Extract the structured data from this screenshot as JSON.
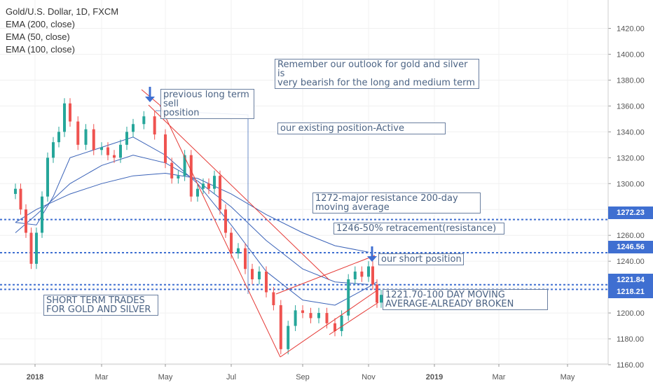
{
  "chart_data": {
    "type": "candlestick",
    "symbol_title": "Gold/U.S. Dollar, 1D, FXCM",
    "indicators": [
      "EMA (200, close)",
      "EMA (50, close)",
      "EMA (100, close)"
    ],
    "x_ticks": [
      "2018",
      "Mar",
      "May",
      "Jul",
      "Sep",
      "Nov",
      "2019",
      "Mar",
      "May"
    ],
    "y_ticks": [
      1160,
      1180,
      1200,
      1220,
      1240,
      1260,
      1280,
      1300,
      1320,
      1340,
      1360,
      1380,
      1400,
      1420
    ],
    "ylim": [
      1156,
      1431
    ],
    "price_series": [
      [
        "Dec 2017",
        1296
      ],
      [
        "Dec 2017",
        1280
      ],
      [
        "Dec 2017",
        1262
      ],
      [
        "Dec 2017",
        1238
      ],
      [
        "Jan 2018",
        1262
      ],
      [
        "Jan 2018",
        1290
      ],
      [
        "Jan 2018",
        1320
      ],
      [
        "Jan 2018",
        1332
      ],
      [
        "Jan 2018",
        1340
      ],
      [
        "Jan 2018",
        1362
      ],
      [
        "Feb 2018",
        1348
      ],
      [
        "Feb 2018",
        1330
      ],
      [
        "Feb 2018",
        1342
      ],
      [
        "Feb 2018",
        1326
      ],
      [
        "Mar 2018",
        1328
      ],
      [
        "Mar 2018",
        1322
      ],
      [
        "Mar 2018",
        1320
      ],
      [
        "Mar 2018",
        1330
      ],
      [
        "Mar 2018",
        1340
      ],
      [
        "Apr 2018",
        1346
      ],
      [
        "Apr 2018",
        1352
      ],
      [
        "Apr 2018",
        1338
      ],
      [
        "May 2018",
        1316
      ],
      [
        "May 2018",
        1304
      ],
      [
        "May 2018",
        1306
      ],
      [
        "May 2018",
        1322
      ],
      [
        "May 2018",
        1290
      ],
      [
        "Jun 2018",
        1296
      ],
      [
        "Jun 2018",
        1300
      ],
      [
        "Jun 2018",
        1296
      ],
      [
        "Jun 2018",
        1306
      ],
      [
        "Jun 2018",
        1280
      ],
      [
        "Jun 2018",
        1262
      ],
      [
        "Jul 2018",
        1246
      ],
      [
        "Jul 2018",
        1250
      ],
      [
        "Jul 2018",
        1234
      ],
      [
        "Jul 2018",
        1226
      ],
      [
        "Jul 2018",
        1232
      ],
      [
        "Aug 2018",
        1216
      ],
      [
        "Aug 2018",
        1206
      ],
      [
        "Aug 2018",
        1172
      ],
      [
        "Aug 2018",
        1190
      ],
      [
        "Aug 2018",
        1202
      ],
      [
        "Sep 2018",
        1200
      ],
      [
        "Sep 2018",
        1196
      ],
      [
        "Sep 2018",
        1200
      ],
      [
        "Sep 2018",
        1192
      ],
      [
        "Oct 2018",
        1186
      ],
      [
        "Oct 2018",
        1198
      ],
      [
        "Oct 2018",
        1226
      ],
      [
        "Oct 2018",
        1232
      ],
      [
        "Oct 2018",
        1228
      ],
      [
        "Nov 2018",
        1236
      ],
      [
        "Nov 2018",
        1222
      ],
      [
        "Nov 2018",
        1208
      ],
      [
        "Nov 2018",
        1214
      ]
    ],
    "ema_50": [
      [
        "Dec 2017",
        1270
      ],
      [
        "Jan 2018",
        1268
      ],
      [
        "Jan 2018",
        1290
      ],
      [
        "Feb 2018",
        1320
      ],
      [
        "Mar 2018",
        1328
      ],
      [
        "Apr 2018",
        1336
      ],
      [
        "May 2018",
        1322
      ],
      [
        "Jun 2018",
        1300
      ],
      [
        "Jul 2018",
        1268
      ],
      [
        "Aug 2018",
        1232
      ],
      [
        "Sep 2018",
        1210
      ],
      [
        "Oct 2018",
        1206
      ],
      [
        "Nov 2018",
        1220
      ],
      [
        "Nov 2018",
        1224
      ]
    ],
    "ema_100": [
      [
        "Dec 2017",
        1262
      ],
      [
        "Jan 2018",
        1276
      ],
      [
        "Feb 2018",
        1300
      ],
      [
        "Mar 2018",
        1314
      ],
      [
        "Apr 2018",
        1322
      ],
      [
        "May 2018",
        1316
      ],
      [
        "Jun 2018",
        1302
      ],
      [
        "Jul 2018",
        1282
      ],
      [
        "Aug 2018",
        1256
      ],
      [
        "Sep 2018",
        1234
      ],
      [
        "Oct 2018",
        1224
      ],
      [
        "Nov 2018",
        1222
      ]
    ],
    "ema_200": [
      [
        "Dec 2017",
        1270
      ],
      [
        "Jan 2018",
        1280
      ],
      [
        "Feb 2018",
        1292
      ],
      [
        "Mar 2018",
        1300
      ],
      [
        "Apr 2018",
        1306
      ],
      [
        "May 2018",
        1308
      ],
      [
        "Jun 2018",
        1304
      ],
      [
        "Jul 2018",
        1292
      ],
      [
        "Aug 2018",
        1276
      ],
      [
        "Sep 2018",
        1262
      ],
      [
        "Oct 2018",
        1252
      ],
      [
        "Nov 2018",
        1247
      ]
    ],
    "horizontal_levels": [
      {
        "label": "1272.23",
        "value": 1272.23
      },
      {
        "label": "1246.56",
        "value": 1246.56
      },
      {
        "label": "1221.84",
        "value": 1221.84
      },
      {
        "label": "1218.21",
        "value": 1218.21
      }
    ],
    "annotations": [
      "Remember our outlook for gold and silver is\nvery bearish for the long and medium term",
      "previous long term sell\nposition",
      "our existing position-Active",
      "1272-major resistance 200-day\nmoving average",
      "1246-50% retracement(resistance)",
      "our short position",
      "1221.70-100 DAY MOVING\nAVERAGE-ALREADY BROKEN",
      "SHORT TERM TRADES\nFOR GOLD AND SILVER"
    ],
    "colors": {
      "up": "#26a69a",
      "down": "#ef5350",
      "ema": "#3b63b8",
      "level": "#3f6fd1",
      "channel": "#e53935",
      "arrow": "#3f6fd1",
      "axis_text": "#555555"
    }
  }
}
